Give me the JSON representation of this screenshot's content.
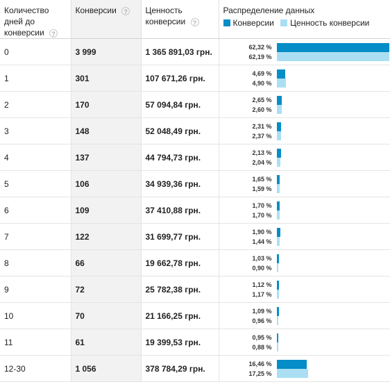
{
  "headers": {
    "days": "Количество дней до конверсии",
    "conversions": "Конверсии",
    "value": "Ценность конверсии",
    "distribution": "Распределение данных",
    "help_glyph": "?"
  },
  "legend": {
    "conversions": "Конверсии",
    "value": "Ценность конверсии"
  },
  "colors": {
    "conversions": "#058dc7",
    "value": "#aadff3"
  },
  "rows": [
    {
      "days": "0",
      "conversions": "3 999",
      "value": "1 365 891,03 грн.",
      "pct_conv": "62,32 %",
      "pct_val": "62,19 %",
      "frac_conv": 0.6232,
      "frac_val": 0.6219
    },
    {
      "days": "1",
      "conversions": "301",
      "value": "107 671,26 грн.",
      "pct_conv": "4,69 %",
      "pct_val": "4,90 %",
      "frac_conv": 0.0469,
      "frac_val": 0.049
    },
    {
      "days": "2",
      "conversions": "170",
      "value": "57 094,84 грн.",
      "pct_conv": "2,65 %",
      "pct_val": "2,60 %",
      "frac_conv": 0.0265,
      "frac_val": 0.026
    },
    {
      "days": "3",
      "conversions": "148",
      "value": "52 048,49 грн.",
      "pct_conv": "2,31 %",
      "pct_val": "2,37 %",
      "frac_conv": 0.0231,
      "frac_val": 0.0237
    },
    {
      "days": "4",
      "conversions": "137",
      "value": "44 794,73 грн.",
      "pct_conv": "2,13 %",
      "pct_val": "2,04 %",
      "frac_conv": 0.0213,
      "frac_val": 0.0204
    },
    {
      "days": "5",
      "conversions": "106",
      "value": "34 939,36 грн.",
      "pct_conv": "1,65 %",
      "pct_val": "1,59 %",
      "frac_conv": 0.0165,
      "frac_val": 0.0159
    },
    {
      "days": "6",
      "conversions": "109",
      "value": "37 410,88 грн.",
      "pct_conv": "1,70 %",
      "pct_val": "1,70 %",
      "frac_conv": 0.017,
      "frac_val": 0.017
    },
    {
      "days": "7",
      "conversions": "122",
      "value": "31 699,77 грн.",
      "pct_conv": "1,90 %",
      "pct_val": "1,44 %",
      "frac_conv": 0.019,
      "frac_val": 0.0144
    },
    {
      "days": "8",
      "conversions": "66",
      "value": "19 662,78 грн.",
      "pct_conv": "1,03 %",
      "pct_val": "0,90 %",
      "frac_conv": 0.0103,
      "frac_val": 0.009
    },
    {
      "days": "9",
      "conversions": "72",
      "value": "25 782,38 грн.",
      "pct_conv": "1,12 %",
      "pct_val": "1,17 %",
      "frac_conv": 0.0112,
      "frac_val": 0.0117
    },
    {
      "days": "10",
      "conversions": "70",
      "value": "21 166,25 грн.",
      "pct_conv": "1,09 %",
      "pct_val": "0,96 %",
      "frac_conv": 0.0109,
      "frac_val": 0.0096
    },
    {
      "days": "11",
      "conversions": "61",
      "value": "19 399,53 грн.",
      "pct_conv": "0,95 %",
      "pct_val": "0,88 %",
      "frac_conv": 0.0095,
      "frac_val": 0.0088
    },
    {
      "days": "12-30",
      "conversions": "1 056",
      "value": "378 784,29 грн.",
      "pct_conv": "16,46 %",
      "pct_val": "17,25 %",
      "frac_conv": 0.1646,
      "frac_val": 0.1725
    }
  ]
}
